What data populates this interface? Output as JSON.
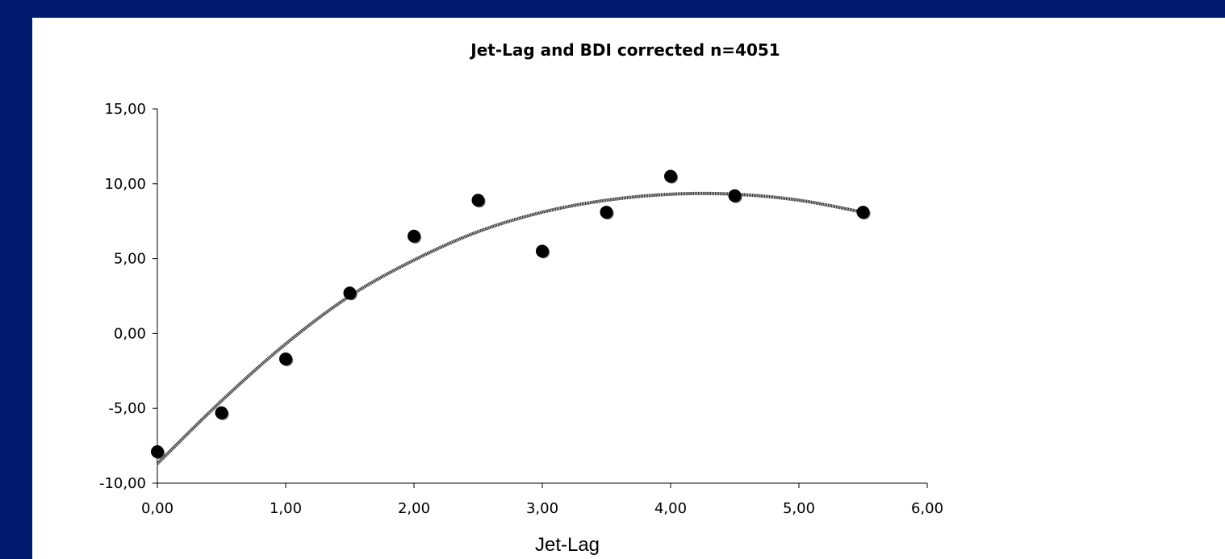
{
  "chart_data": {
    "type": "scatter",
    "title": "Jet-Lag and BDI corrected n=4051",
    "xlabel": "Jet-Lag",
    "ylabel": "",
    "xlim": [
      0,
      6
    ],
    "ylim": [
      -10,
      15
    ],
    "x_ticks": [
      "0,00",
      "1,00",
      "2,00",
      "3,00",
      "4,00",
      "5,00",
      "6,00"
    ],
    "y_ticks": [
      "-10,00",
      "-5,00",
      "0,00",
      "5,00",
      "10,00",
      "15,00"
    ],
    "grid": false,
    "legend": "none",
    "series": [
      {
        "points": [
          {
            "x": 0.0,
            "y": -7.9
          },
          {
            "x": 0.5,
            "y": -5.3
          },
          {
            "x": 1.0,
            "y": -1.7
          },
          {
            "x": 1.5,
            "y": 2.7
          },
          {
            "x": 2.0,
            "y": 6.5
          },
          {
            "x": 2.5,
            "y": 8.9
          },
          {
            "x": 3.0,
            "y": 5.5
          },
          {
            "x": 3.5,
            "y": 8.1
          },
          {
            "x": 4.0,
            "y": 10.5
          },
          {
            "x": 4.5,
            "y": 9.2
          },
          {
            "x": 5.5,
            "y": 8.1
          }
        ],
        "trendline": {
          "type": "polynomial",
          "curve": [
            {
              "x": 0.0,
              "y": -8.7
            },
            {
              "x": 0.5,
              "y": -4.5
            },
            {
              "x": 1.0,
              "y": -0.7
            },
            {
              "x": 1.5,
              "y": 2.5
            },
            {
              "x": 2.0,
              "y": 4.9
            },
            {
              "x": 2.5,
              "y": 6.8
            },
            {
              "x": 3.0,
              "y": 8.1
            },
            {
              "x": 3.5,
              "y": 8.9
            },
            {
              "x": 4.0,
              "y": 9.3
            },
            {
              "x": 4.5,
              "y": 9.3
            },
            {
              "x": 5.0,
              "y": 8.9
            },
            {
              "x": 5.5,
              "y": 8.1
            }
          ]
        }
      }
    ],
    "colors": {
      "background": "#001a6e",
      "panel": "#ffffff",
      "marker": "#000000",
      "trendline": "#3a3a3a"
    }
  }
}
